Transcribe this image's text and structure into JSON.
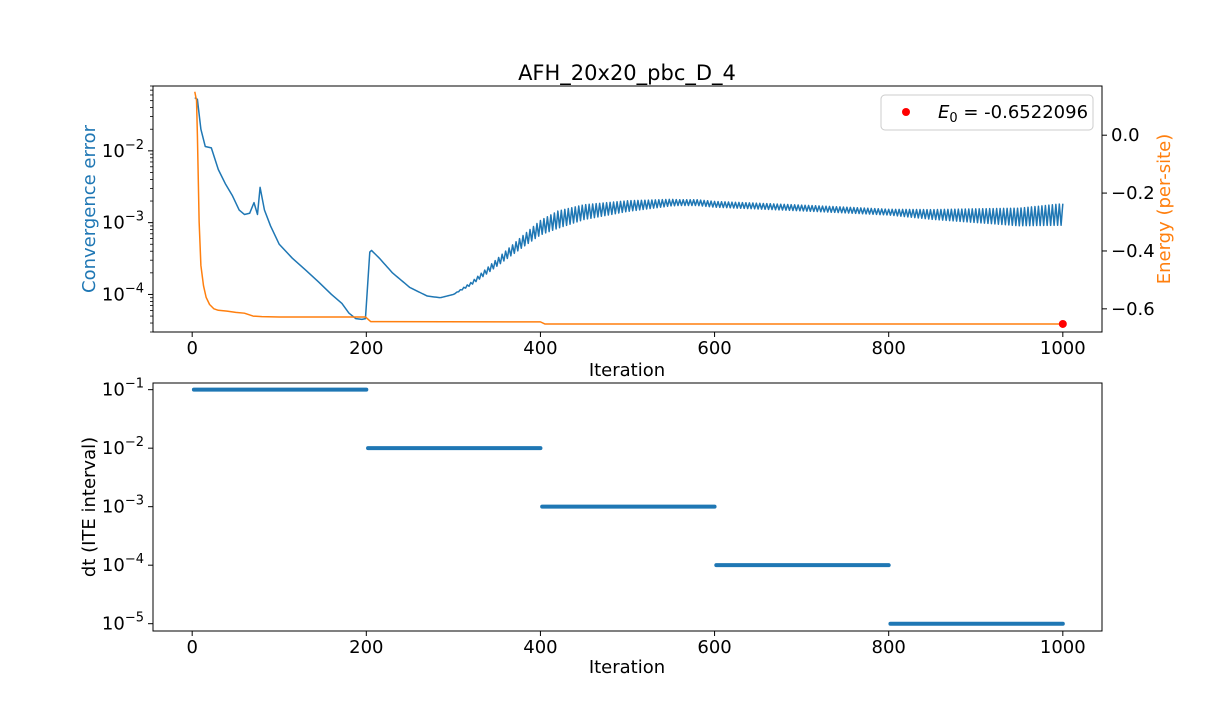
{
  "chart_data": [
    {
      "type": "line",
      "title": "AFH_20x20_pbc_D_4",
      "xlabel": "Iteration",
      "ylabel_left": "Convergence error",
      "ylabel_right": "Energy (per-site)",
      "xlim": [
        -45,
        1045
      ],
      "xticks": [
        0,
        200,
        400,
        600,
        800,
        1000
      ],
      "xtick_labels": [
        "0",
        "200",
        "400",
        "600",
        "800",
        "1000"
      ],
      "left_yscale": "log",
      "left_ylim": [
        3e-05,
        0.08
      ],
      "left_yticks": [
        0.0001,
        0.001,
        0.01
      ],
      "left_ytick_labels": [
        {
          "base": "10",
          "exp": "−4"
        },
        {
          "base": "10",
          "exp": "−3"
        },
        {
          "base": "10",
          "exp": "−2"
        }
      ],
      "right_ylim": [
        -0.68,
        0.17
      ],
      "right_yticks": [
        0.0,
        -0.2,
        -0.4,
        -0.6
      ],
      "right_ytick_labels": [
        "0.0",
        "−0.2",
        "−0.4",
        "−0.6"
      ],
      "colors": {
        "error": "#1f77b4",
        "energy": "#ff7f0e",
        "marker": "#ff0000",
        "error_label": "#1f77b4",
        "energy_label": "#ff7f0e"
      },
      "series": [
        {
          "name": "Convergence error",
          "axis": "left",
          "oscillation": {
            "start": 200,
            "end": 1000
          },
          "points": [
            [
              3,
              0.055
            ],
            [
              6,
              0.052
            ],
            [
              10,
              0.02
            ],
            [
              15,
              0.0115
            ],
            [
              22,
              0.011
            ],
            [
              30,
              0.0055
            ],
            [
              38,
              0.0035
            ],
            [
              46,
              0.0024
            ],
            [
              54,
              0.0015
            ],
            [
              60,
              0.0013
            ],
            [
              66,
              0.00135
            ],
            [
              71,
              0.0019
            ],
            [
              75,
              0.0013
            ],
            [
              78,
              0.0031
            ],
            [
              83,
              0.0015
            ],
            [
              90,
              0.0009
            ],
            [
              100,
              0.0005
            ],
            [
              115,
              0.00032
            ],
            [
              130,
              0.00022
            ],
            [
              145,
              0.00015
            ],
            [
              160,
              0.0001
            ],
            [
              172,
              7.5e-05
            ],
            [
              180,
              5.5e-05
            ],
            [
              188,
              4.6e-05
            ],
            [
              195,
              4.5e-05
            ],
            [
              199,
              4.6e-05
            ],
            [
              203,
              0.00038
            ],
            [
              206,
              0.00041
            ],
            [
              215,
              0.00032
            ],
            [
              230,
              0.0002
            ],
            [
              250,
              0.000125
            ],
            [
              270,
              9.5e-05
            ],
            [
              285,
              9e-05
            ],
            [
              300,
              0.0001
            ],
            [
              320,
              0.00014
            ],
            [
              340,
              0.00022
            ],
            [
              360,
              0.00035
            ],
            [
              380,
              0.00055
            ],
            [
              400,
              0.00085
            ],
            [
              420,
              0.0011
            ],
            [
              450,
              0.0014
            ],
            [
              500,
              0.0017
            ],
            [
              550,
              0.0019
            ],
            [
              580,
              0.0019
            ],
            [
              600,
              0.0018
            ],
            [
              650,
              0.0017
            ],
            [
              700,
              0.0016
            ],
            [
              750,
              0.0015
            ],
            [
              800,
              0.0014
            ],
            [
              850,
              0.0013
            ],
            [
              900,
              0.00125
            ],
            [
              950,
              0.0012
            ],
            [
              1000,
              0.0013
            ]
          ]
        },
        {
          "name": "Energy (per-site)",
          "axis": "right",
          "points": [
            [
              3,
              0.15
            ],
            [
              5,
              0.12
            ],
            [
              6,
              0.0
            ],
            [
              8,
              -0.3
            ],
            [
              10,
              -0.45
            ],
            [
              13,
              -0.52
            ],
            [
              16,
              -0.56
            ],
            [
              20,
              -0.585
            ],
            [
              25,
              -0.6
            ],
            [
              30,
              -0.605
            ],
            [
              40,
              -0.608
            ],
            [
              50,
              -0.612
            ],
            [
              60,
              -0.615
            ],
            [
              70,
              -0.625
            ],
            [
              80,
              -0.627
            ],
            [
              100,
              -0.628
            ],
            [
              150,
              -0.628
            ],
            [
              199,
              -0.628
            ],
            [
              205,
              -0.644
            ],
            [
              400,
              -0.645
            ],
            [
              405,
              -0.6522
            ],
            [
              1000,
              -0.6522
            ]
          ]
        }
      ],
      "marker": {
        "x": 1000,
        "y": -0.6522096
      },
      "legend": {
        "position": "top-right",
        "symbol": "E",
        "subscript": "0",
        "text": " = -0.6522096"
      }
    },
    {
      "type": "scatter",
      "xlabel": "Iteration",
      "ylabel": "dt (ITE interval)",
      "xlim": [
        -45,
        1045
      ],
      "xticks": [
        0,
        200,
        400,
        600,
        800,
        1000
      ],
      "xtick_labels": [
        "0",
        "200",
        "400",
        "600",
        "800",
        "1000"
      ],
      "yscale": "log",
      "ylim": [
        7.5e-06,
        0.13
      ],
      "yticks": [
        1e-05,
        0.0001,
        0.001,
        0.01,
        0.1
      ],
      "ytick_labels": [
        {
          "base": "10",
          "exp": "−5"
        },
        {
          "base": "10",
          "exp": "−4"
        },
        {
          "base": "10",
          "exp": "−3"
        },
        {
          "base": "10",
          "exp": "−2"
        },
        {
          "base": "10",
          "exp": "−1"
        }
      ],
      "color": "#1f77b4",
      "series": [
        {
          "name": "dt",
          "segments": [
            {
              "x_start": 2,
              "x_end": 200,
              "value": 0.1
            },
            {
              "x_start": 202,
              "x_end": 400,
              "value": 0.01
            },
            {
              "x_start": 402,
              "x_end": 600,
              "value": 0.001
            },
            {
              "x_start": 602,
              "x_end": 800,
              "value": 0.0001
            },
            {
              "x_start": 802,
              "x_end": 1000,
              "value": 1e-05
            }
          ]
        }
      ]
    }
  ]
}
